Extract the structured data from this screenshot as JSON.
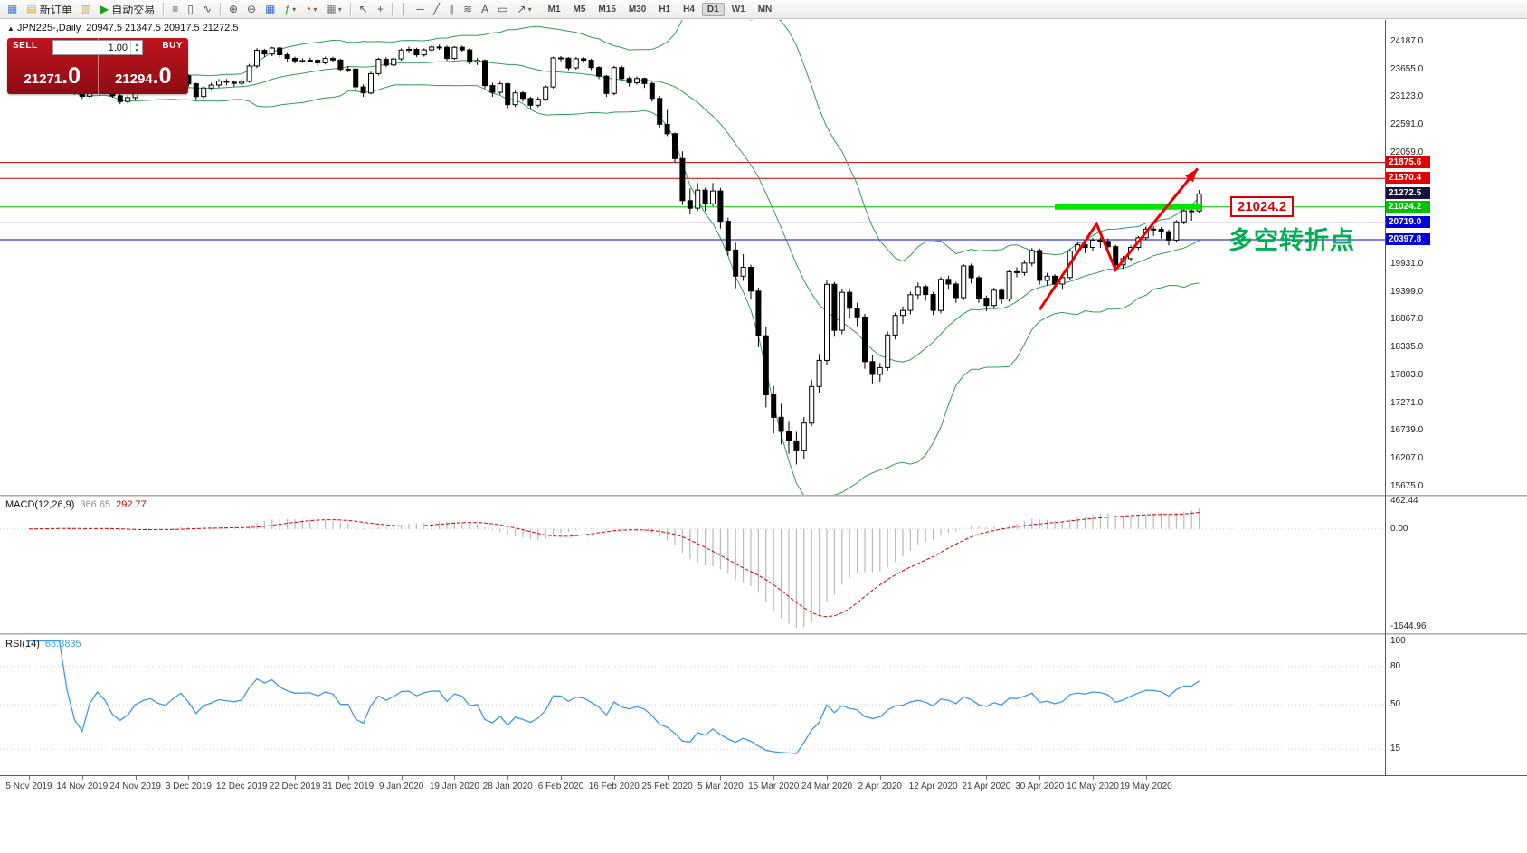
{
  "toolbar": {
    "items": [
      {
        "name": "app-icon-button",
        "glyph": "▦",
        "color": "#4a7fd4"
      },
      {
        "name": "new-order-button",
        "glyph": "▤",
        "color": "#d7a33c",
        "label": "新订单"
      },
      {
        "name": "charts-profile-button",
        "glyph": "▥",
        "color": "#d7a33c"
      },
      {
        "name": "autotrade-button",
        "glyph": "▶",
        "color": "#18a018",
        "label": "自动交易"
      },
      {
        "type": "sep"
      },
      {
        "name": "bar-chart-button",
        "glyph": "≡"
      },
      {
        "name": "candlestick-chart-button",
        "glyph": "▯"
      },
      {
        "name": "line-chart-button",
        "glyph": "∿"
      },
      {
        "type": "sep"
      },
      {
        "name": "zoom-in-button",
        "glyph": "⊕"
      },
      {
        "name": "zoom-out-button",
        "glyph": "⊖"
      },
      {
        "name": "tile-windows-button",
        "glyph": "▦",
        "color": "#3a6fd8"
      },
      {
        "name": "indicators-button",
        "glyph": "ƒ",
        "color": "#18a018",
        "caret": true
      },
      {
        "name": "periods-button",
        "glyph": "◔",
        "color": "#b06820",
        "caret": true
      },
      {
        "name": "templates-button",
        "glyph": "▦",
        "color": "#7a7a7a",
        "caret": true
      },
      {
        "type": "sep"
      },
      {
        "name": "cursor-button",
        "glyph": "↖"
      },
      {
        "name": "crosshair-button",
        "glyph": "+"
      },
      {
        "type": "sep"
      },
      {
        "name": "vertical-line-button",
        "glyph": "│"
      },
      {
        "name": "horizontal-line-button",
        "glyph": "─"
      },
      {
        "name": "trendline-button",
        "glyph": "╱"
      },
      {
        "name": "channel-button",
        "glyph": "∥"
      },
      {
        "name": "fibonacci-button",
        "glyph": "≋"
      },
      {
        "name": "text-button",
        "glyph": "A"
      },
      {
        "name": "label-button",
        "glyph": "▭"
      },
      {
        "name": "arrows-button",
        "glyph": "↗",
        "caret": true
      }
    ],
    "timeframes": [
      "M1",
      "M5",
      "M15",
      "M30",
      "H1",
      "H4",
      "D1",
      "W1",
      "MN"
    ],
    "active_timeframe": "D1"
  },
  "chart_header": {
    "symbol_period": "JPN225-,Daily",
    "ohlc": "20947.5 21347.5 20917.5 21272.5"
  },
  "trade_panel": {
    "sell_label": "SELL",
    "buy_label": "BUY",
    "volume": "1.00",
    "sell_price": "21271.0",
    "buy_price": "21294.0",
    "sell_price_int": "21271",
    "sell_price_dec": ".0",
    "buy_price_int": "21294",
    "buy_price_dec": ".0"
  },
  "annotations": {
    "price_label": "21024.2",
    "cn_note": "多空转折点"
  },
  "chart_data": {
    "type": "candlestick",
    "symbol": "JPN225-",
    "period": "Daily",
    "y_range": {
      "top": 24602,
      "bottom": 15518
    },
    "y_ticks": [
      {
        "v": 24187,
        "t": "24187.0"
      },
      {
        "v": 23655,
        "t": "23655.0"
      },
      {
        "v": 23123,
        "t": "23123.0"
      },
      {
        "v": 22591,
        "t": "22591.0"
      },
      {
        "v": 22059,
        "t": "22059.0"
      },
      {
        "v": 19931,
        "t": "19931.0"
      },
      {
        "v": 19399,
        "t": "19399.0"
      },
      {
        "v": 18867,
        "t": "18867.0"
      },
      {
        "v": 18335,
        "t": "18335.0"
      },
      {
        "v": 17803,
        "t": "17803.0"
      },
      {
        "v": 17271,
        "t": "17271.0"
      },
      {
        "v": 16739,
        "t": "16739.0"
      },
      {
        "v": 16207,
        "t": "16207.0"
      },
      {
        "v": 15675,
        "t": "15675.0"
      }
    ],
    "price_lines": [
      {
        "price": 21875.6,
        "color": "#d40000",
        "width": 1
      },
      {
        "price": 21570.4,
        "color": "#d40000",
        "width": 1
      },
      {
        "price": 21272.5,
        "color": "#b8b8b8",
        "width": 1
      },
      {
        "price": 21024.2,
        "color": "#00cc00",
        "width": 1
      },
      {
        "price": 20719.0,
        "color": "#0000dd",
        "width": 1
      },
      {
        "price": 20397.8,
        "color": "#0000dd",
        "width": 1
      }
    ],
    "price_boxes": [
      {
        "text": "21875.6",
        "price": 21875.6,
        "bg": "#e00000"
      },
      {
        "text": "21570.4",
        "price": 21570.4,
        "bg": "#e00000"
      },
      {
        "text": "21272.5",
        "price": 21272.5,
        "bg": "#14143c"
      },
      {
        "text": "21024.2",
        "price": 21024.2,
        "bg": "#00c400"
      },
      {
        "text": "20719.0",
        "price": 20719.0,
        "bg": "#0000dd"
      },
      {
        "text": "20397.8",
        "price": 20397.8,
        "bg": "#0000dd"
      }
    ],
    "support_segment": {
      "price": 21024.2,
      "from_index": 135,
      "to_index": 154.3,
      "color": "#00e400",
      "width": 6
    },
    "trend_arrow": {
      "color": "#ee0000",
      "width": 3,
      "points": [
        [
          133,
          19060
        ],
        [
          140.5,
          20700
        ],
        [
          143,
          19820
        ],
        [
          153.8,
          21760
        ]
      ]
    },
    "bollinger": {
      "period": 20,
      "deviations": 2,
      "color": "#2f9e5d"
    },
    "indicators": {
      "macd": {
        "label": "MACD(12,26,9)",
        "value_main": "366.65",
        "value_signal": "292.77",
        "params": {
          "fast": 12,
          "slow": 26,
          "signal": 9
        },
        "axis_labels": [
          {
            "v": 462.44,
            "t": "462.44"
          },
          {
            "v": 0,
            "t": "0.00"
          },
          {
            "v": -1644.96,
            "t": "-1644.96"
          }
        ],
        "hist_color": "#b9b9b9",
        "signal_color": "#e00000"
      },
      "rsi": {
        "label": "RSI(14)",
        "value": "68.3835",
        "period": 14,
        "levels": [
          80,
          50,
          15
        ],
        "axis_labels": [
          {
            "v": 100,
            "t": "100"
          },
          {
            "v": 80,
            "t": "80"
          },
          {
            "v": 50,
            "t": "50"
          },
          {
            "v": 15,
            "t": "15"
          }
        ],
        "line_color": "#3d9be9"
      }
    },
    "x_labels": [
      {
        "i": 0,
        "t": "5 Nov 2019"
      },
      {
        "i": 7,
        "t": "14 Nov 2019"
      },
      {
        "i": 14,
        "t": "24 Nov 2019"
      },
      {
        "i": 21,
        "t": "3 Dec 2019"
      },
      {
        "i": 28,
        "t": "12 Dec 2019"
      },
      {
        "i": 35,
        "t": "22 Dec 2019"
      },
      {
        "i": 42,
        "t": "31 Dec 2019"
      },
      {
        "i": 49,
        "t": "9 Jan 2020"
      },
      {
        "i": 56,
        "t": "19 Jan 2020"
      },
      {
        "i": 63,
        "t": "28 Jan 2020"
      },
      {
        "i": 70,
        "t": "6 Feb 2020"
      },
      {
        "i": 77,
        "t": "16 Feb 2020"
      },
      {
        "i": 84,
        "t": "25 Feb 2020"
      },
      {
        "i": 91,
        "t": "5 Mar 2020"
      },
      {
        "i": 98,
        "t": "15 Mar 2020"
      },
      {
        "i": 105,
        "t": "24 Mar 2020"
      },
      {
        "i": 112,
        "t": "2 Apr 2020"
      },
      {
        "i": 119,
        "t": "12 Apr 2020"
      },
      {
        "i": 126,
        "t": "21 Apr 2020"
      },
      {
        "i": 133,
        "t": "30 Apr 2020"
      },
      {
        "i": 140,
        "t": "10 May 2020"
      },
      {
        "i": 147,
        "t": "19 May 2020"
      }
    ],
    "candles": [
      [
        23250,
        23330,
        23210,
        23290
      ],
      [
        23290,
        23360,
        23240,
        23305
      ],
      [
        23305,
        23385,
        23270,
        23335
      ],
      [
        23335,
        23430,
        23300,
        23390
      ],
      [
        23390,
        23440,
        23330,
        23395
      ],
      [
        23395,
        23430,
        23290,
        23330
      ],
      [
        23330,
        23360,
        23170,
        23225
      ],
      [
        23225,
        23280,
        23090,
        23140
      ],
      [
        23140,
        23330,
        23100,
        23300
      ],
      [
        23300,
        23450,
        23260,
        23415
      ],
      [
        23415,
        23460,
        23290,
        23340
      ],
      [
        23340,
        23380,
        23110,
        23150
      ],
      [
        23150,
        23200,
        22990,
        23040
      ],
      [
        23040,
        23160,
        23000,
        23115
      ],
      [
        23115,
        23330,
        23080,
        23290
      ],
      [
        23290,
        23410,
        23250,
        23370
      ],
      [
        23370,
        23450,
        23320,
        23410
      ],
      [
        23410,
        23440,
        23280,
        23330
      ],
      [
        23330,
        23370,
        23240,
        23295
      ],
      [
        23295,
        23460,
        23260,
        23420
      ],
      [
        23420,
        23580,
        23380,
        23530
      ],
      [
        23530,
        23560,
        23330,
        23380
      ],
      [
        23380,
        23400,
        23060,
        23135
      ],
      [
        23135,
        23340,
        23090,
        23300
      ],
      [
        23300,
        23400,
        23250,
        23355
      ],
      [
        23355,
        23470,
        23310,
        23430
      ],
      [
        23430,
        23470,
        23350,
        23410
      ],
      [
        23410,
        23440,
        23330,
        23390
      ],
      [
        23390,
        23470,
        23340,
        23425
      ],
      [
        23425,
        23760,
        23400,
        23720
      ],
      [
        23720,
        24060,
        23680,
        24020
      ],
      [
        24020,
        24050,
        23890,
        23950
      ],
      [
        23950,
        24090,
        23910,
        24065
      ],
      [
        24065,
        24090,
        23880,
        23935
      ],
      [
        23935,
        23970,
        23810,
        23865
      ],
      [
        23865,
        23900,
        23770,
        23820
      ],
      [
        23820,
        23870,
        23780,
        23825
      ],
      [
        23825,
        23880,
        23790,
        23830
      ],
      [
        23830,
        23860,
        23730,
        23780
      ],
      [
        23780,
        23900,
        23750,
        23865
      ],
      [
        23865,
        23900,
        23790,
        23835
      ],
      [
        23835,
        23860,
        23610,
        23655
      ],
      [
        23655,
        23720,
        23600,
        23660
      ],
      [
        23660,
        23680,
        23270,
        23320
      ],
      [
        23320,
        23370,
        23130,
        23205
      ],
      [
        23205,
        23610,
        23180,
        23575
      ],
      [
        23575,
        23880,
        23540,
        23850
      ],
      [
        23850,
        23890,
        23700,
        23740
      ],
      [
        23740,
        23890,
        23710,
        23855
      ],
      [
        23855,
        24060,
        23820,
        24025
      ],
      [
        24025,
        24090,
        23970,
        24040
      ],
      [
        24040,
        24070,
        23890,
        23935
      ],
      [
        23935,
        24060,
        23900,
        24030
      ],
      [
        24030,
        24120,
        23990,
        24085
      ],
      [
        24085,
        24130,
        24030,
        24080
      ],
      [
        24080,
        24110,
        23820,
        23865
      ],
      [
        23865,
        24100,
        23840,
        24080
      ],
      [
        24080,
        24110,
        23980,
        24030
      ],
      [
        24030,
        24060,
        23750,
        23795
      ],
      [
        23795,
        23870,
        23740,
        23825
      ],
      [
        23825,
        23850,
        23290,
        23345
      ],
      [
        23345,
        23400,
        23130,
        23215
      ],
      [
        23215,
        23420,
        23170,
        23380
      ],
      [
        23380,
        23400,
        22910,
        22980
      ],
      [
        22980,
        23250,
        22940,
        23205
      ],
      [
        23205,
        23240,
        23040,
        23100
      ],
      [
        23100,
        23130,
        22900,
        22970
      ],
      [
        22970,
        23130,
        22930,
        23085
      ],
      [
        23085,
        23350,
        23050,
        23320
      ],
      [
        23320,
        23900,
        23290,
        23875
      ],
      [
        23875,
        23910,
        23810,
        23870
      ],
      [
        23870,
        23890,
        23640,
        23685
      ],
      [
        23685,
        23890,
        23650,
        23860
      ],
      [
        23860,
        23890,
        23780,
        23830
      ],
      [
        23830,
        23860,
        23640,
        23690
      ],
      [
        23690,
        23720,
        23470,
        23525
      ],
      [
        23525,
        23550,
        23130,
        23195
      ],
      [
        23195,
        23720,
        23160,
        23690
      ],
      [
        23690,
        23730,
        23440,
        23480
      ],
      [
        23480,
        23520,
        23330,
        23400
      ],
      [
        23400,
        23520,
        23360,
        23480
      ],
      [
        23480,
        23500,
        23300,
        23385
      ],
      [
        23385,
        23420,
        23040,
        23100
      ],
      [
        23100,
        23150,
        22540,
        22605
      ],
      [
        22605,
        22880,
        22380,
        22425
      ],
      [
        22425,
        22450,
        21870,
        21950
      ],
      [
        21950,
        22090,
        21060,
        21145
      ],
      [
        21145,
        21380,
        20880,
        21000
      ],
      [
        21000,
        21480,
        20950,
        21345
      ],
      [
        21345,
        21390,
        20940,
        21085
      ],
      [
        21085,
        21480,
        21040,
        21330
      ],
      [
        21330,
        21390,
        20610,
        20750
      ],
      [
        20750,
        20820,
        20090,
        20200
      ],
      [
        20200,
        20340,
        19470,
        19700
      ],
      [
        19700,
        20120,
        19610,
        19870
      ],
      [
        19870,
        19920,
        19250,
        19415
      ],
      [
        19415,
        19480,
        18340,
        18560
      ],
      [
        18560,
        18720,
        17190,
        17430
      ],
      [
        17430,
        17600,
        16690,
        17000
      ],
      [
        17000,
        17260,
        16480,
        16730
      ],
      [
        16730,
        16930,
        16300,
        16550
      ],
      [
        16550,
        16720,
        16100,
        16360
      ],
      [
        16360,
        17010,
        16210,
        16890
      ],
      [
        16890,
        17720,
        16830,
        17590
      ],
      [
        17590,
        18210,
        17470,
        18090
      ],
      [
        18090,
        19620,
        18000,
        19545
      ],
      [
        19545,
        19590,
        18540,
        18665
      ],
      [
        18665,
        19460,
        18590,
        19390
      ],
      [
        19390,
        19440,
        18890,
        19085
      ],
      [
        19085,
        19190,
        18740,
        18920
      ],
      [
        18920,
        18980,
        17930,
        18065
      ],
      [
        18065,
        18200,
        17650,
        17820
      ],
      [
        17820,
        18040,
        17680,
        17950
      ],
      [
        17950,
        18640,
        17890,
        18575
      ],
      [
        18575,
        19000,
        18490,
        18950
      ],
      [
        18950,
        19120,
        18790,
        19045
      ],
      [
        19045,
        19400,
        18970,
        19345
      ],
      [
        19345,
        19580,
        19250,
        19500
      ],
      [
        19500,
        19540,
        19230,
        19350
      ],
      [
        19350,
        19400,
        18960,
        19045
      ],
      [
        19045,
        19690,
        18990,
        19640
      ],
      [
        19640,
        19710,
        19440,
        19550
      ],
      [
        19550,
        19590,
        19190,
        19290
      ],
      [
        19290,
        19930,
        19240,
        19895
      ],
      [
        19895,
        19940,
        19560,
        19670
      ],
      [
        19670,
        19710,
        19190,
        19280
      ],
      [
        19280,
        19330,
        19030,
        19140
      ],
      [
        19140,
        19480,
        19090,
        19430
      ],
      [
        19430,
        19470,
        19170,
        19260
      ],
      [
        19260,
        19820,
        19210,
        19785
      ],
      [
        19785,
        19870,
        19680,
        19770
      ],
      [
        19770,
        20010,
        19710,
        19950
      ],
      [
        19950,
        20240,
        19890,
        20190
      ],
      [
        20190,
        20230,
        19540,
        19620
      ],
      [
        19620,
        19760,
        19520,
        19700
      ],
      [
        19700,
        19740,
        19440,
        19550
      ],
      [
        19550,
        19720,
        19440,
        19675
      ],
      [
        19675,
        20220,
        19620,
        20180
      ],
      [
        20180,
        20350,
        20110,
        20300
      ],
      [
        20300,
        20340,
        20140,
        20250
      ],
      [
        20250,
        20430,
        20190,
        20390
      ],
      [
        20390,
        20440,
        20240,
        20365
      ],
      [
        20365,
        20420,
        20150,
        20265
      ],
      [
        20265,
        20300,
        19830,
        19915
      ],
      [
        19915,
        20090,
        19840,
        20035
      ],
      [
        20035,
        20290,
        19980,
        20250
      ],
      [
        20250,
        20470,
        20200,
        20435
      ],
      [
        20435,
        20650,
        20390,
        20600
      ],
      [
        20600,
        20660,
        20470,
        20595
      ],
      [
        20595,
        20640,
        20420,
        20550
      ],
      [
        20550,
        20590,
        20290,
        20390
      ],
      [
        20390,
        20770,
        20340,
        20740
      ],
      [
        20740,
        21010,
        20690,
        20950
      ],
      [
        20950,
        21060,
        20760,
        20947.5
      ],
      [
        20947.5,
        21347.5,
        20917.5,
        21272.5
      ]
    ]
  }
}
